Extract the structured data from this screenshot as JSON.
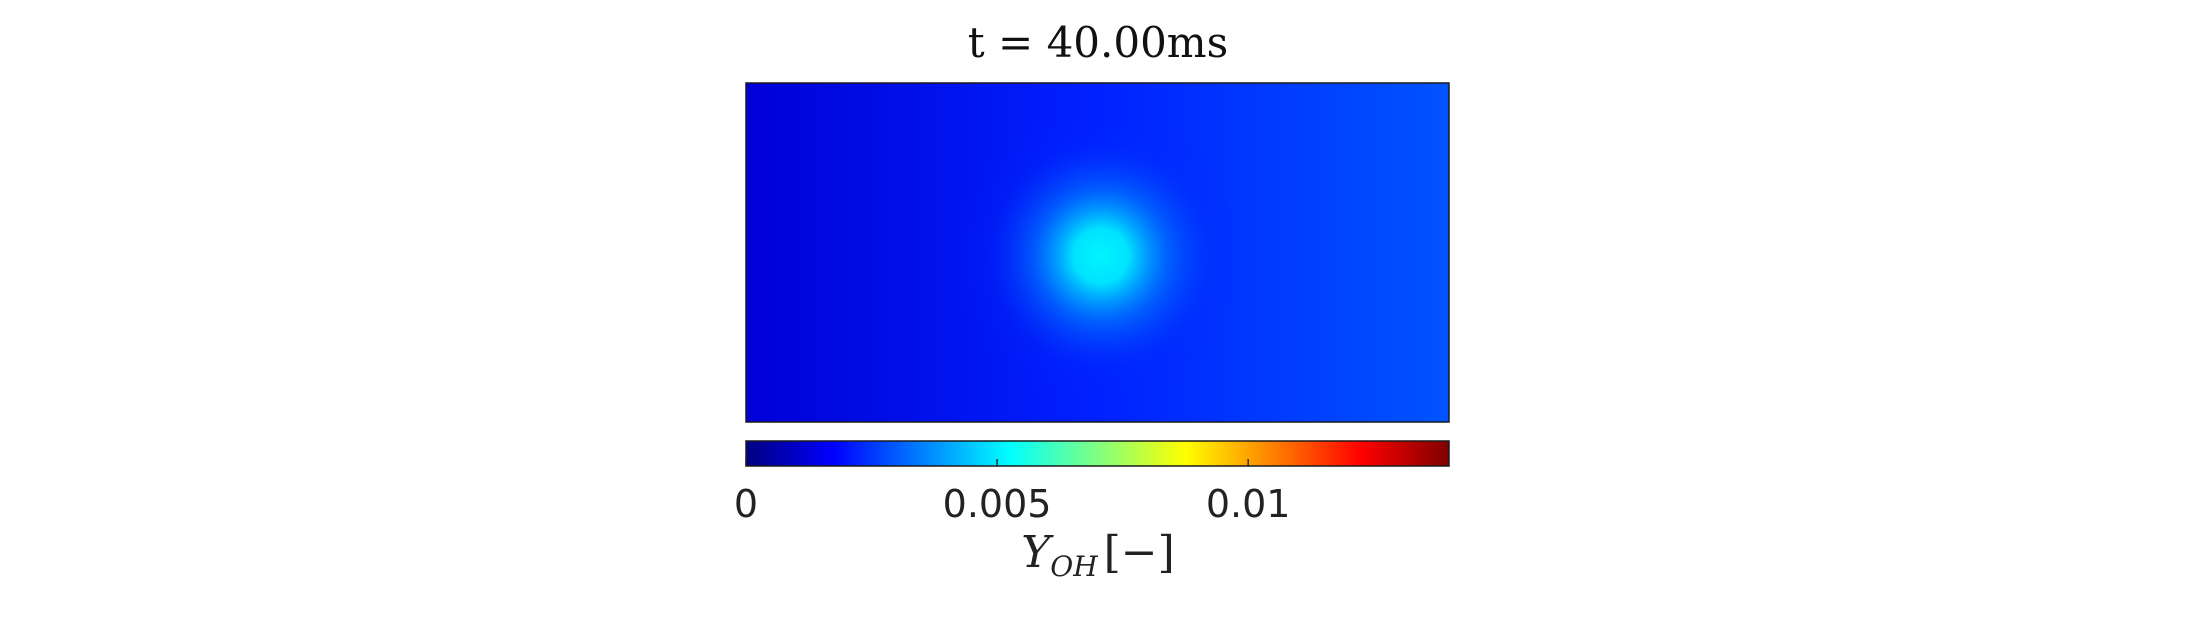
{
  "chart_data": {
    "type": "heatmap",
    "title": "t = 40.00ms",
    "quantity": {
      "symbol": "Y",
      "subscript": "OH",
      "unit": "[−]"
    },
    "colormap": "jet",
    "clim": [
      0,
      0.014
    ],
    "colorbar": {
      "location": "bottom",
      "ticks": [
        0,
        0.005,
        0.01
      ],
      "tick_labels": [
        "0",
        "0.005",
        "0.01"
      ]
    },
    "field": {
      "background_gradient": [
        {
          "x_frac": 0.0,
          "value": 0.0012
        },
        {
          "x_frac": 0.5,
          "value": 0.0022
        },
        {
          "x_frac": 1.0,
          "value": 0.0029
        }
      ],
      "hotspot": {
        "x_frac": 0.505,
        "y_frac": 0.51,
        "peak_value": 0.0051
      }
    },
    "axes_visible": false
  }
}
